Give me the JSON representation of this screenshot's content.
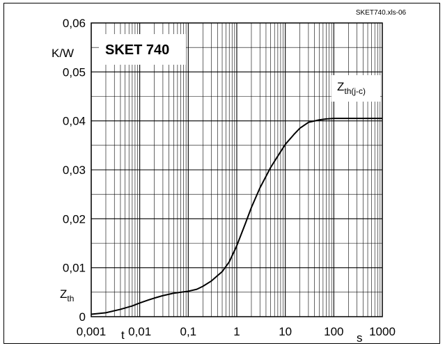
{
  "file_label": "SKET740.xls-06",
  "chart_data": {
    "type": "line",
    "title": "SKET 740",
    "x_scale": "log",
    "xlim": [
      0.001,
      1000
    ],
    "ylim": [
      0,
      0.06
    ],
    "grid": true,
    "x_ticks": [
      "0,001",
      "0,01",
      "0,1",
      "1",
      "10",
      "100",
      "1000"
    ],
    "y_ticks": [
      "0",
      "0,01",
      "0,02",
      "0,03",
      "0,04",
      "0,05",
      "0,06"
    ],
    "xlabel": "t",
    "xunit": "s",
    "ylabel_main": "Z",
    "ylabel_sub": "th",
    "yunit": "K/W",
    "series": [
      {
        "name": "Zth(j-c)",
        "name_main": "Z",
        "name_sub": "th(j-c)",
        "x": [
          0.001,
          0.002,
          0.004,
          0.007,
          0.01,
          0.015,
          0.02,
          0.03,
          0.05,
          0.07,
          0.1,
          0.15,
          0.2,
          0.3,
          0.5,
          0.7,
          1,
          1.5,
          2,
          3,
          5,
          7,
          10,
          15,
          20,
          30,
          50,
          70,
          100,
          200,
          500,
          1000
        ],
        "y": [
          0.0005,
          0.0008,
          0.0015,
          0.0022,
          0.0028,
          0.0034,
          0.0038,
          0.0043,
          0.0048,
          0.005,
          0.0052,
          0.0056,
          0.0062,
          0.0073,
          0.0092,
          0.0112,
          0.0145,
          0.019,
          0.0223,
          0.0263,
          0.0305,
          0.0328,
          0.0352,
          0.0372,
          0.0385,
          0.0397,
          0.0402,
          0.0404,
          0.0405,
          0.0405,
          0.0405,
          0.0405
        ]
      }
    ]
  }
}
